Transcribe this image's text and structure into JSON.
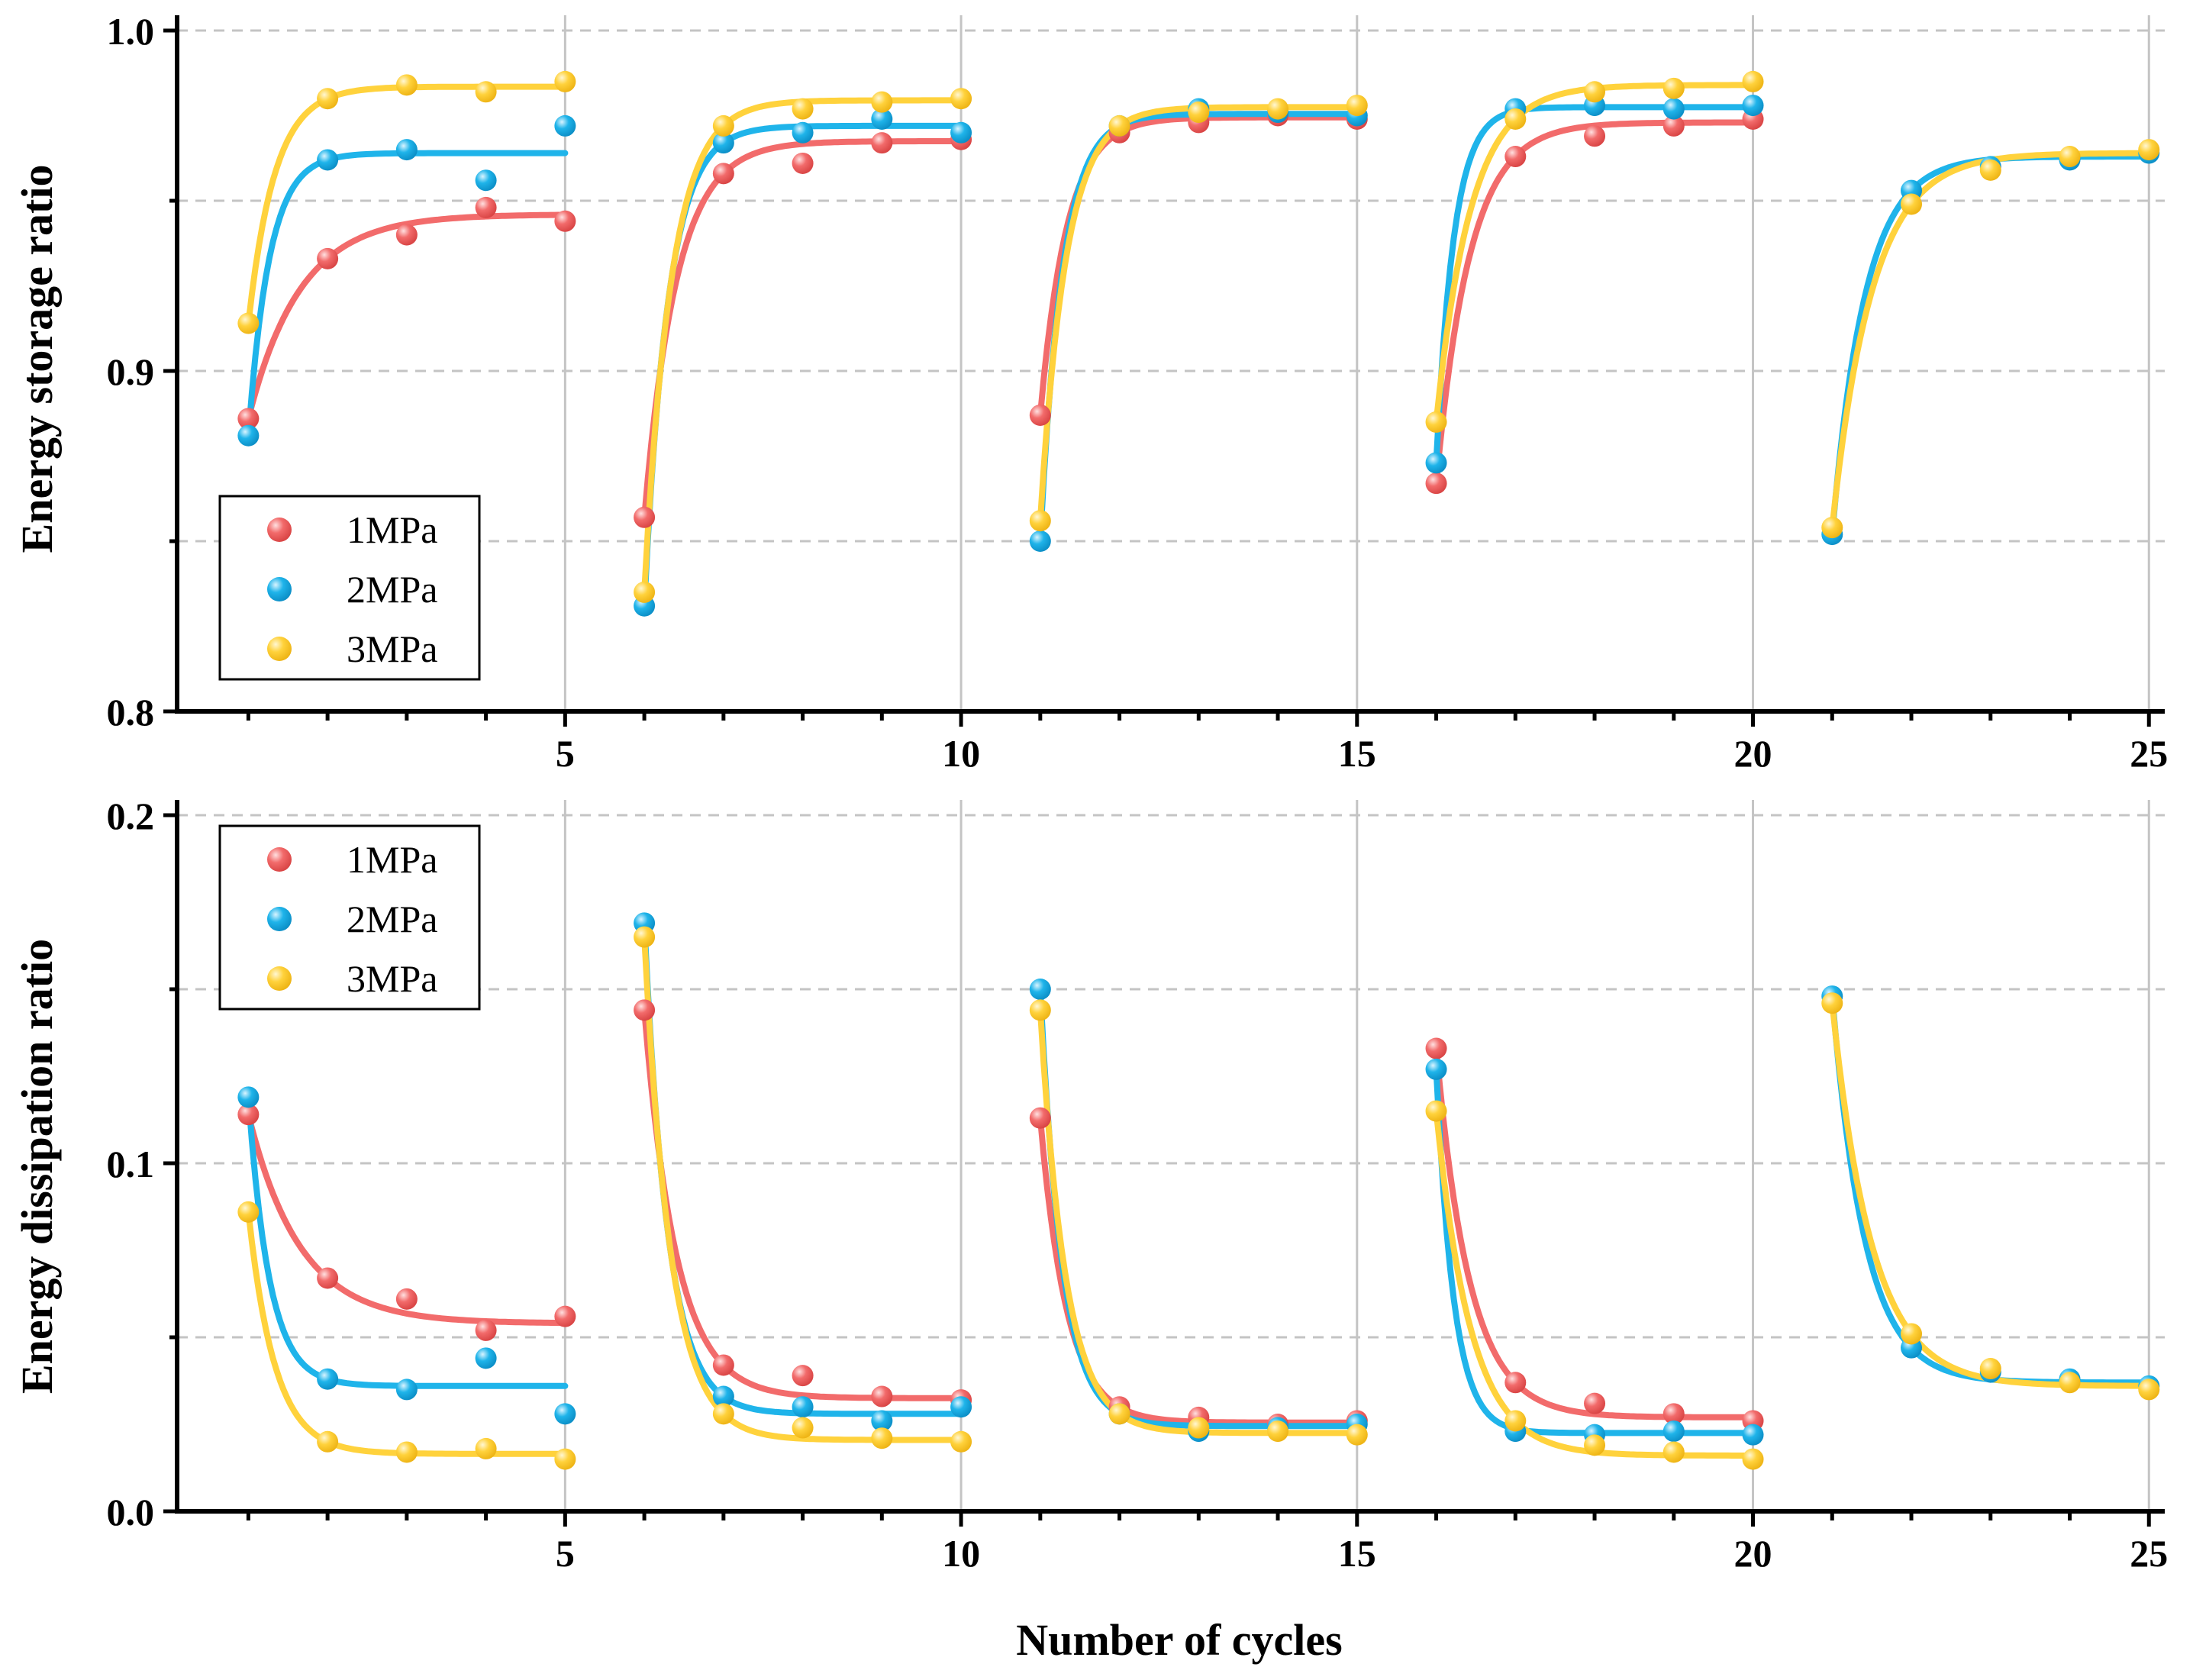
{
  "colors": {
    "s1": "#f26b6b",
    "s2": "#1fb4ea",
    "s3": "#ffd23c"
  },
  "xlabel": "Number of cycles",
  "chart_data": [
    {
      "type": "scatter",
      "panel": "top",
      "title": "",
      "xlabel": "Number of cycles",
      "ylabel": "Energy storage ratio",
      "xlim": [
        0.1,
        25.2
      ],
      "ylim": [
        0.8,
        1.0
      ],
      "x_ticks": [
        5,
        10,
        15,
        20,
        25
      ],
      "x_tick_labels": [
        "5",
        "10",
        "15",
        "20",
        "25"
      ],
      "y_ticks": [
        0.8,
        0.9,
        1.0
      ],
      "y_tick_labels": [
        "0.8",
        "0.9",
        "1.0"
      ],
      "y_minor_ticks": [
        0.85,
        0.95
      ],
      "grid": true,
      "legend_position": "bottom-left",
      "series": [
        {
          "name": "1MPa",
          "color": "#f26b6b",
          "x": [
            1,
            2,
            3,
            4,
            5,
            6,
            7,
            8,
            9,
            10,
            11,
            12,
            13,
            14,
            15,
            16,
            17,
            18,
            19,
            20
          ],
          "values": [
            0.886,
            0.933,
            0.94,
            0.948,
            0.944,
            0.857,
            0.958,
            0.961,
            0.967,
            0.968,
            0.887,
            0.97,
            0.973,
            0.975,
            0.974,
            0.867,
            0.963,
            0.969,
            0.972,
            0.974
          ]
        },
        {
          "name": "2MPa",
          "color": "#1fb4ea",
          "x": [
            1,
            2,
            3,
            4,
            5,
            6,
            7,
            8,
            9,
            10,
            11,
            12,
            13,
            14,
            15,
            16,
            17,
            18,
            19,
            20,
            21,
            22,
            23,
            24,
            25
          ],
          "values": [
            0.881,
            0.962,
            0.965,
            0.956,
            0.972,
            0.831,
            0.967,
            0.97,
            0.974,
            0.97,
            0.85,
            0.972,
            0.977,
            0.976,
            0.975,
            0.873,
            0.977,
            0.978,
            0.977,
            0.978,
            0.852,
            0.953,
            0.96,
            0.962,
            0.964
          ]
        },
        {
          "name": "3MPa",
          "color": "#ffd23c",
          "x": [
            1,
            2,
            3,
            4,
            5,
            6,
            7,
            8,
            9,
            10,
            11,
            12,
            13,
            14,
            15,
            16,
            17,
            18,
            19,
            20,
            21,
            22,
            23,
            24,
            25
          ],
          "values": [
            0.914,
            0.98,
            0.984,
            0.982,
            0.985,
            0.835,
            0.972,
            0.977,
            0.979,
            0.98,
            0.856,
            0.972,
            0.976,
            0.977,
            0.978,
            0.885,
            0.974,
            0.982,
            0.983,
            0.985,
            0.854,
            0.949,
            0.959,
            0.963,
            0.965
          ]
        }
      ]
    },
    {
      "type": "scatter",
      "panel": "bottom",
      "title": "",
      "xlabel": "Number of cycles",
      "ylabel": "Energy dissipation ratio",
      "xlim": [
        0.1,
        25.2
      ],
      "ylim": [
        0.0,
        0.2
      ],
      "x_ticks": [
        5,
        10,
        15,
        20,
        25
      ],
      "x_tick_labels": [
        "5",
        "10",
        "15",
        "20",
        "25"
      ],
      "y_ticks": [
        0.0,
        0.1,
        0.2
      ],
      "y_tick_labels": [
        "0.0",
        "0.1",
        "0.2"
      ],
      "y_minor_ticks": [
        0.05,
        0.15
      ],
      "grid": true,
      "legend_position": "top-left",
      "series": [
        {
          "name": "1MPa",
          "color": "#f26b6b",
          "x": [
            1,
            2,
            3,
            4,
            5,
            6,
            7,
            8,
            9,
            10,
            11,
            12,
            13,
            14,
            15,
            16,
            17,
            18,
            19,
            20
          ],
          "values": [
            0.114,
            0.067,
            0.061,
            0.052,
            0.056,
            0.144,
            0.042,
            0.039,
            0.033,
            0.032,
            0.113,
            0.03,
            0.027,
            0.025,
            0.026,
            0.133,
            0.037,
            0.031,
            0.028,
            0.026
          ]
        },
        {
          "name": "2MPa",
          "color": "#1fb4ea",
          "x": [
            1,
            2,
            3,
            4,
            5,
            6,
            7,
            8,
            9,
            10,
            11,
            12,
            13,
            14,
            15,
            16,
            17,
            18,
            19,
            20,
            21,
            22,
            23,
            24,
            25
          ],
          "values": [
            0.119,
            0.038,
            0.035,
            0.044,
            0.028,
            0.169,
            0.033,
            0.03,
            0.026,
            0.03,
            0.15,
            0.028,
            0.023,
            0.024,
            0.025,
            0.127,
            0.023,
            0.022,
            0.023,
            0.022,
            0.148,
            0.047,
            0.04,
            0.038,
            0.036
          ]
        },
        {
          "name": "3MPa",
          "color": "#ffd23c",
          "x": [
            1,
            2,
            3,
            4,
            5,
            6,
            7,
            8,
            9,
            10,
            11,
            12,
            13,
            14,
            15,
            16,
            17,
            18,
            19,
            20,
            21,
            22,
            23,
            24,
            25
          ],
          "values": [
            0.086,
            0.02,
            0.017,
            0.018,
            0.015,
            0.165,
            0.028,
            0.024,
            0.021,
            0.02,
            0.144,
            0.028,
            0.024,
            0.023,
            0.022,
            0.115,
            0.026,
            0.019,
            0.017,
            0.015,
            0.146,
            0.051,
            0.041,
            0.037,
            0.035
          ]
        }
      ]
    }
  ]
}
